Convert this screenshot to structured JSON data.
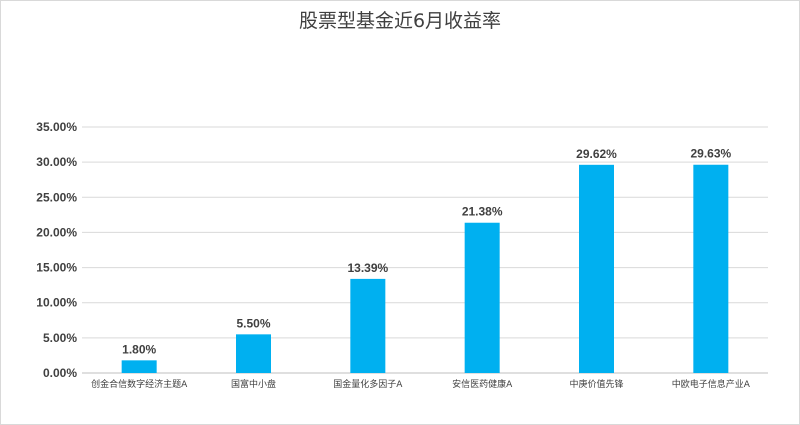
{
  "chart_data": {
    "type": "bar",
    "title": "股票型基金近6月收益率",
    "xlabel": "",
    "ylabel": "",
    "categories": [
      "创金合信数字经济主题A",
      "国富中小盘",
      "国金量化多因子A",
      "安信医药健康A",
      "中庚价值先锋",
      "中欧电子信息产业A"
    ],
    "values": [
      1.8,
      5.5,
      13.39,
      21.38,
      29.62,
      29.63
    ],
    "data_labels": [
      "1.80%",
      "5.50%",
      "13.39%",
      "21.38%",
      "29.62%",
      "29.63%"
    ],
    "ylim": [
      0,
      35
    ],
    "yticks": [
      "0.00%",
      "5.00%",
      "10.00%",
      "15.00%",
      "20.00%",
      "25.00%",
      "30.00%",
      "35.00%"
    ],
    "ytick_step": 5,
    "grid": true,
    "legend": "none",
    "colors": {
      "bar": "#00b0f0",
      "grid": "#d9d9d9",
      "text": "#404040"
    }
  }
}
